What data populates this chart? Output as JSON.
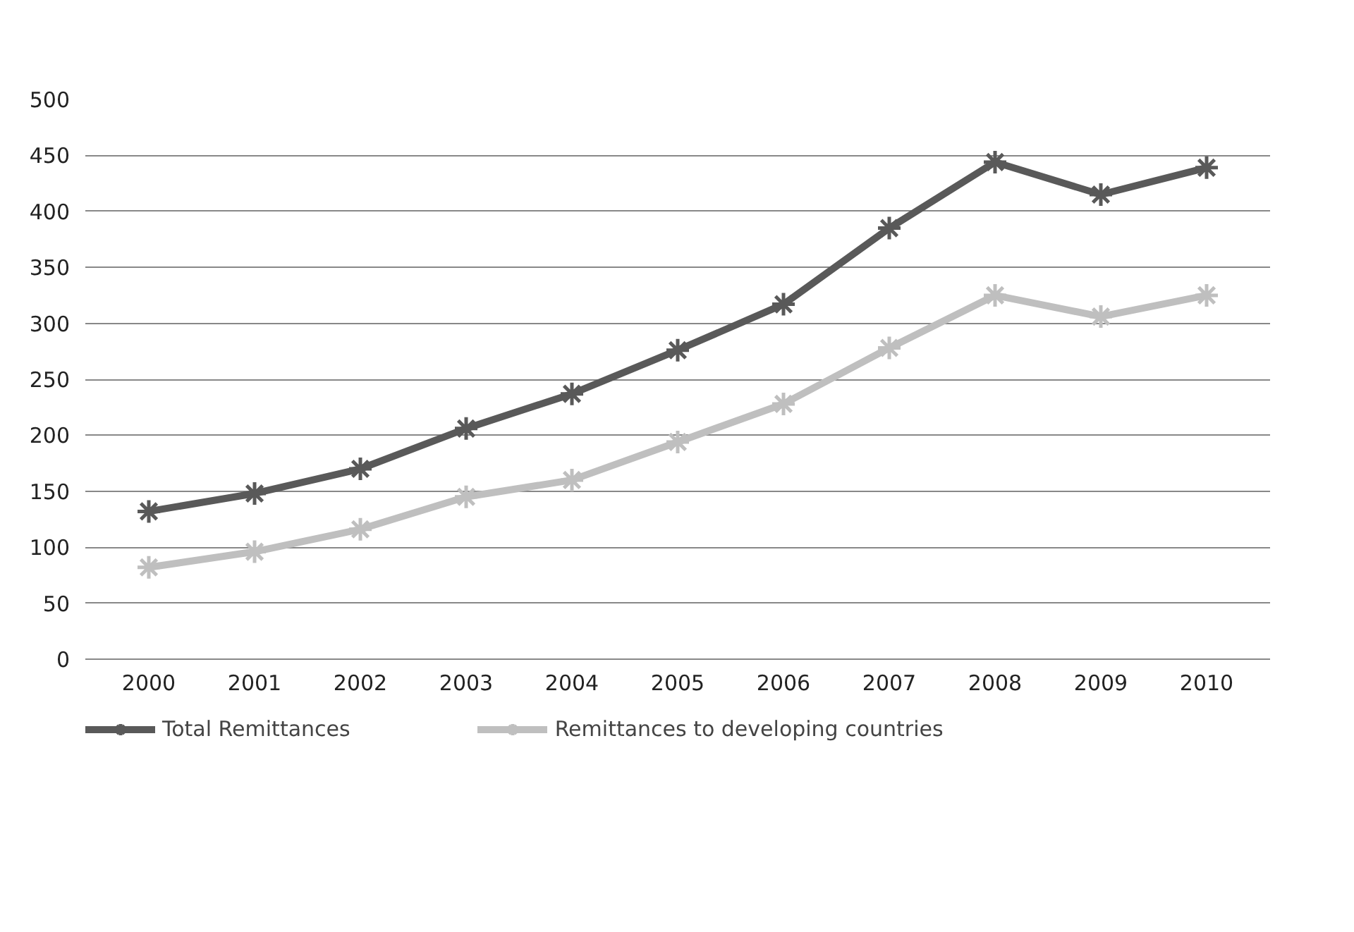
{
  "chart_data": {
    "type": "line",
    "categories": [
      "2000",
      "2001",
      "2002",
      "2003",
      "2004",
      "2005",
      "2006",
      "2007",
      "2008",
      "2009",
      "2010"
    ],
    "series": [
      {
        "name": "Total Remittances",
        "color": "#595959",
        "values": [
          132,
          148,
          170,
          206,
          237,
          276,
          317,
          385,
          444,
          415,
          439
        ]
      },
      {
        "name": "Remittances to developing countries",
        "color": "#bfbfbf",
        "values": [
          82,
          96,
          116,
          145,
          160,
          194,
          228,
          278,
          325,
          306,
          325
        ]
      }
    ],
    "ylim": [
      0,
      500
    ],
    "yticks": [
      0,
      50,
      100,
      150,
      200,
      250,
      300,
      350,
      400,
      450,
      500
    ],
    "grid": "y",
    "legend": "bottom",
    "marker": "cross",
    "line_style": "solid"
  }
}
